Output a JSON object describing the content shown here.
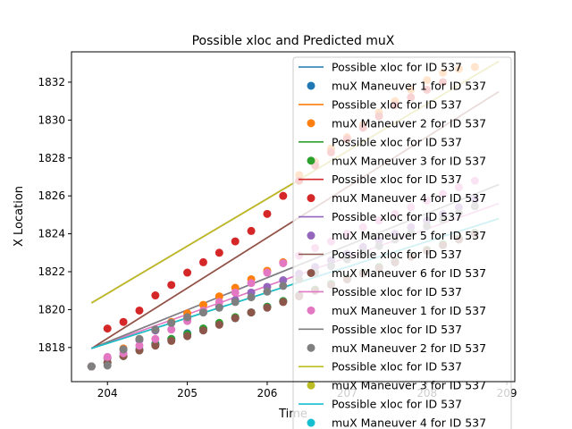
{
  "chart_data": {
    "type": "scatter",
    "title": "Possible xloc and Predicted muX",
    "xlabel": "Time",
    "ylabel": "X Location",
    "xlim": [
      203.55,
      209.1
    ],
    "ylim": [
      1816.2,
      1833.6
    ],
    "xticks": [
      204,
      205,
      206,
      207,
      208,
      209
    ],
    "yticks": [
      1818,
      1820,
      1822,
      1824,
      1826,
      1828,
      1830,
      1832
    ],
    "grid": false,
    "legend_position": "top-right",
    "line_series": [
      {
        "name": "Possible xloc for ID 537",
        "color": "#1f77b4",
        "x": [
          203.8,
          208.9
        ],
        "y": [
          1820.35,
          1833.1
        ]
      },
      {
        "name": "Possible xloc for ID 537",
        "color": "#ff7f0e",
        "x": [
          203.8,
          208.9
        ],
        "y": [
          1820.35,
          1833.1
        ]
      },
      {
        "name": "Possible xloc for ID 537",
        "color": "#2ca02c",
        "x": [
          203.8,
          208.9
        ],
        "y": [
          1817.95,
          1824.8
        ]
      },
      {
        "name": "Possible xloc for ID 537",
        "color": "#d62728",
        "x": [
          203.8,
          208.9
        ],
        "y": [
          1817.95,
          1831.5
        ]
      },
      {
        "name": "Possible xloc for ID 537",
        "color": "#9467bd",
        "x": [
          203.8,
          208.9
        ],
        "y": [
          1817.95,
          1826.6
        ]
      },
      {
        "name": "Possible xloc for ID 537",
        "color": "#8c564b",
        "x": [
          203.8,
          208.9
        ],
        "y": [
          1817.95,
          1831.5
        ]
      },
      {
        "name": "Possible xloc for ID 537",
        "color": "#e377c2",
        "x": [
          203.8,
          208.9
        ],
        "y": [
          1817.95,
          1825.6
        ]
      },
      {
        "name": "Possible xloc for ID 537",
        "color": "#7f7f7f",
        "x": [
          203.8,
          208.9
        ],
        "y": [
          1817.95,
          1826.6
        ]
      },
      {
        "name": "Possible xloc for ID 537",
        "color": "#bcbd22",
        "x": [
          203.8,
          208.9
        ],
        "y": [
          1820.35,
          1833.1
        ]
      },
      {
        "name": "Possible xloc for ID 537",
        "color": "#17becf",
        "x": [
          203.8,
          208.9
        ],
        "y": [
          1817.95,
          1824.8
        ]
      }
    ],
    "scatter_series": [
      {
        "name": "muX Maneuver 1 for ID 537",
        "color": "#1f77b4",
        "x": [
          203.8,
          204.0,
          204.2,
          204.4,
          204.6,
          204.8,
          205.0,
          205.2,
          205.4,
          205.6,
          205.8,
          206.0,
          206.2,
          206.4,
          206.6,
          206.8,
          207.0,
          207.2,
          207.4,
          207.6,
          207.8,
          208.0,
          208.2,
          208.4,
          208.6
        ],
        "y": [
          1817.0,
          1817.2,
          1817.55,
          1817.9,
          1818.2,
          1818.45,
          1818.75,
          1819.0,
          1819.25,
          1819.55,
          1819.85,
          1820.15,
          1820.45,
          1820.75,
          1821.05,
          1821.35,
          1821.6,
          1821.9,
          1822.2,
          1822.5,
          1822.8,
          1823.1,
          1823.4,
          1823.7,
          1824.0
        ]
      },
      {
        "name": "muX Maneuver 2 for ID 537",
        "color": "#ff7f0e",
        "x": [
          203.8,
          204.0,
          204.2,
          204.4,
          204.6,
          204.8,
          205.0,
          205.2,
          205.4,
          205.6,
          205.8,
          206.0,
          206.2,
          206.4,
          206.6,
          206.8,
          207.0,
          207.2,
          207.4,
          207.6,
          207.8,
          208.0,
          208.2,
          208.4,
          208.6
        ],
        "y": [
          1817.0,
          1817.45,
          1817.95,
          1818.45,
          1818.9,
          1819.35,
          1819.8,
          1820.25,
          1820.7,
          1821.15,
          1821.6,
          1822.05,
          1822.5,
          1827.1,
          1827.8,
          1828.5,
          1829.1,
          1829.75,
          1830.4,
          1831.0,
          1831.6,
          1832.1,
          1832.5,
          1832.7,
          1832.8
        ]
      },
      {
        "name": "muX Maneuver 3 for ID 537",
        "color": "#2ca02c",
        "x": [
          203.8,
          204.0,
          204.2,
          204.4,
          204.6,
          204.8,
          205.0,
          205.2,
          205.4,
          205.6,
          205.8,
          206.0,
          206.2,
          206.4,
          206.6,
          206.8,
          207.0,
          207.2,
          207.4,
          207.6,
          207.8,
          208.0,
          208.2,
          208.4,
          208.6
        ],
        "y": [
          1817.0,
          1817.2,
          1817.55,
          1817.85,
          1818.15,
          1818.45,
          1818.7,
          1819.0,
          1819.3,
          1819.6,
          1819.85,
          1820.15,
          1820.45,
          1820.75,
          1821.05,
          1821.35,
          1821.65,
          1821.95,
          1822.25,
          1822.55,
          1822.85,
          1823.15,
          1823.45,
          1823.75,
          1824.05
        ]
      },
      {
        "name": "muX Maneuver 4 for ID 537",
        "color": "#d62728",
        "x": [
          204.0,
          204.2,
          204.4,
          204.6,
          204.8,
          205.0,
          205.2,
          205.4,
          205.6,
          205.8,
          206.0,
          206.2,
          206.4,
          206.6,
          206.8,
          207.0,
          207.2,
          207.4,
          207.6,
          207.8,
          208.0,
          208.2
        ],
        "y": [
          1819.0,
          1819.35,
          1819.95,
          1820.75,
          1821.3,
          1821.95,
          1822.5,
          1823.0,
          1823.6,
          1824.15,
          1825.05,
          1826.0,
          1826.8,
          1827.6,
          1828.3,
          1829.0,
          1829.6,
          1830.2,
          1830.8,
          1831.2,
          1831.6,
          1832.0
        ]
      },
      {
        "name": "muX Maneuver 5 for ID 537",
        "color": "#9467bd",
        "x": [
          203.8,
          204.0,
          204.2,
          204.4,
          204.6,
          204.8,
          205.0,
          205.2,
          205.4,
          205.6,
          205.8,
          206.0,
          206.2,
          206.4,
          206.6,
          206.8,
          207.0,
          207.2,
          207.4,
          207.6,
          207.8,
          208.0,
          208.2,
          208.4,
          208.6
        ],
        "y": [
          1817.0,
          1817.45,
          1817.9,
          1818.4,
          1818.9,
          1819.3,
          1819.55,
          1819.85,
          1820.15,
          1820.5,
          1820.9,
          1821.2,
          1821.55,
          1821.9,
          1822.25,
          1822.6,
          1822.95,
          1823.3,
          1823.65,
          1824.0,
          1824.35,
          1824.7,
          1825.05,
          1825.4,
          1825.8
        ]
      },
      {
        "name": "muX Maneuver 6 for ID 537",
        "color": "#8c564b",
        "x": [
          203.8,
          204.0,
          204.2,
          204.4,
          204.6,
          204.8,
          205.0,
          205.2,
          205.4,
          205.6,
          205.8,
          206.0,
          206.2,
          206.4,
          206.6,
          206.8,
          207.0,
          207.2,
          207.4,
          207.6,
          207.8,
          208.0,
          208.2,
          208.4,
          208.6
        ],
        "y": [
          1817.0,
          1817.2,
          1817.55,
          1817.85,
          1818.1,
          1818.35,
          1818.6,
          1818.9,
          1819.2,
          1819.55,
          1819.85,
          1820.1,
          1820.4,
          1820.7,
          1821.0,
          1821.3,
          1821.6,
          1821.9,
          1822.2,
          1822.5,
          1822.8,
          1823.1,
          1823.4,
          1823.7,
          1824.0
        ]
      },
      {
        "name": "muX Maneuver 1 for ID 537",
        "color": "#e377c2",
        "x": [
          203.8,
          204.0,
          204.2,
          204.4,
          204.6,
          204.8,
          205.0,
          205.2,
          205.4,
          205.6,
          205.8,
          206.0,
          206.2,
          206.4,
          206.6,
          206.8,
          207.0,
          207.2,
          207.4,
          207.6,
          207.8,
          208.0,
          208.2,
          208.4,
          208.6
        ],
        "y": [
          1817.0,
          1817.5,
          1817.7,
          1818.1,
          1818.45,
          1818.95,
          1819.4,
          1819.95,
          1820.4,
          1820.9,
          1821.4,
          1821.95,
          1822.45,
          1822.85,
          1823.25,
          1823.6,
          1824.0,
          1824.35,
          1824.7,
          1825.05,
          1825.4,
          1825.75,
          1826.1,
          1826.45,
          1826.8
        ]
      },
      {
        "name": "muX Maneuver 2 for ID 537",
        "color": "#7f7f7f",
        "x": [
          203.8,
          204.0,
          204.2,
          204.4,
          204.6,
          204.8,
          205.0,
          205.2,
          205.4,
          205.6,
          205.8,
          206.0,
          206.2,
          206.4,
          206.6,
          206.8,
          207.0,
          207.2,
          207.4,
          207.6,
          207.8,
          208.0,
          208.2,
          208.4,
          208.6
        ],
        "y": [
          1817.0,
          1817.05,
          1817.9,
          1818.45,
          1818.95,
          1819.3,
          1819.6,
          1819.85,
          1820.1,
          1820.4,
          1820.65,
          1820.95,
          1821.25,
          1821.6,
          1821.95,
          1822.3,
          1822.65,
          1823.0,
          1823.35,
          1823.7,
          1824.05,
          1824.4,
          1824.75,
          1825.1,
          1825.45
        ]
      }
    ],
    "legend": [
      {
        "label": "Possible xloc for ID 537",
        "kind": "line",
        "color": "#1f77b4"
      },
      {
        "label": "muX Maneuver 1 for ID 537",
        "kind": "dot",
        "color": "#1f77b4"
      },
      {
        "label": "Possible xloc for ID 537",
        "kind": "line",
        "color": "#ff7f0e"
      },
      {
        "label": "muX Maneuver 2 for ID 537",
        "kind": "dot",
        "color": "#ff7f0e"
      },
      {
        "label": "Possible xloc for ID 537",
        "kind": "line",
        "color": "#2ca02c"
      },
      {
        "label": "muX Maneuver 3 for ID 537",
        "kind": "dot",
        "color": "#2ca02c"
      },
      {
        "label": "Possible xloc for ID 537",
        "kind": "line",
        "color": "#d62728"
      },
      {
        "label": "muX Maneuver 4 for ID 537",
        "kind": "dot",
        "color": "#d62728"
      },
      {
        "label": "Possible xloc for ID 537",
        "kind": "line",
        "color": "#9467bd"
      },
      {
        "label": "muX Maneuver 5 for ID 537",
        "kind": "dot",
        "color": "#9467bd"
      },
      {
        "label": "Possible xloc for ID 537",
        "kind": "line",
        "color": "#8c564b"
      },
      {
        "label": "muX Maneuver 6 for ID 537",
        "kind": "dot",
        "color": "#8c564b"
      },
      {
        "label": "Possible xloc for ID 537",
        "kind": "line",
        "color": "#e377c2"
      },
      {
        "label": "muX Maneuver 1 for ID 537",
        "kind": "dot",
        "color": "#e377c2"
      },
      {
        "label": "Possible xloc for ID 537",
        "kind": "line",
        "color": "#7f7f7f"
      },
      {
        "label": "muX Maneuver 2 for ID 537",
        "kind": "dot",
        "color": "#7f7f7f"
      },
      {
        "label": "Possible xloc for ID 537",
        "kind": "line",
        "color": "#bcbd22"
      },
      {
        "label": "muX Maneuver 3 for ID 537",
        "kind": "dot",
        "color": "#bcbd22"
      },
      {
        "label": "Possible xloc for ID 537",
        "kind": "line",
        "color": "#17becf"
      },
      {
        "label": "muX Maneuver 4 for ID 537",
        "kind": "dot",
        "color": "#17becf"
      }
    ]
  }
}
